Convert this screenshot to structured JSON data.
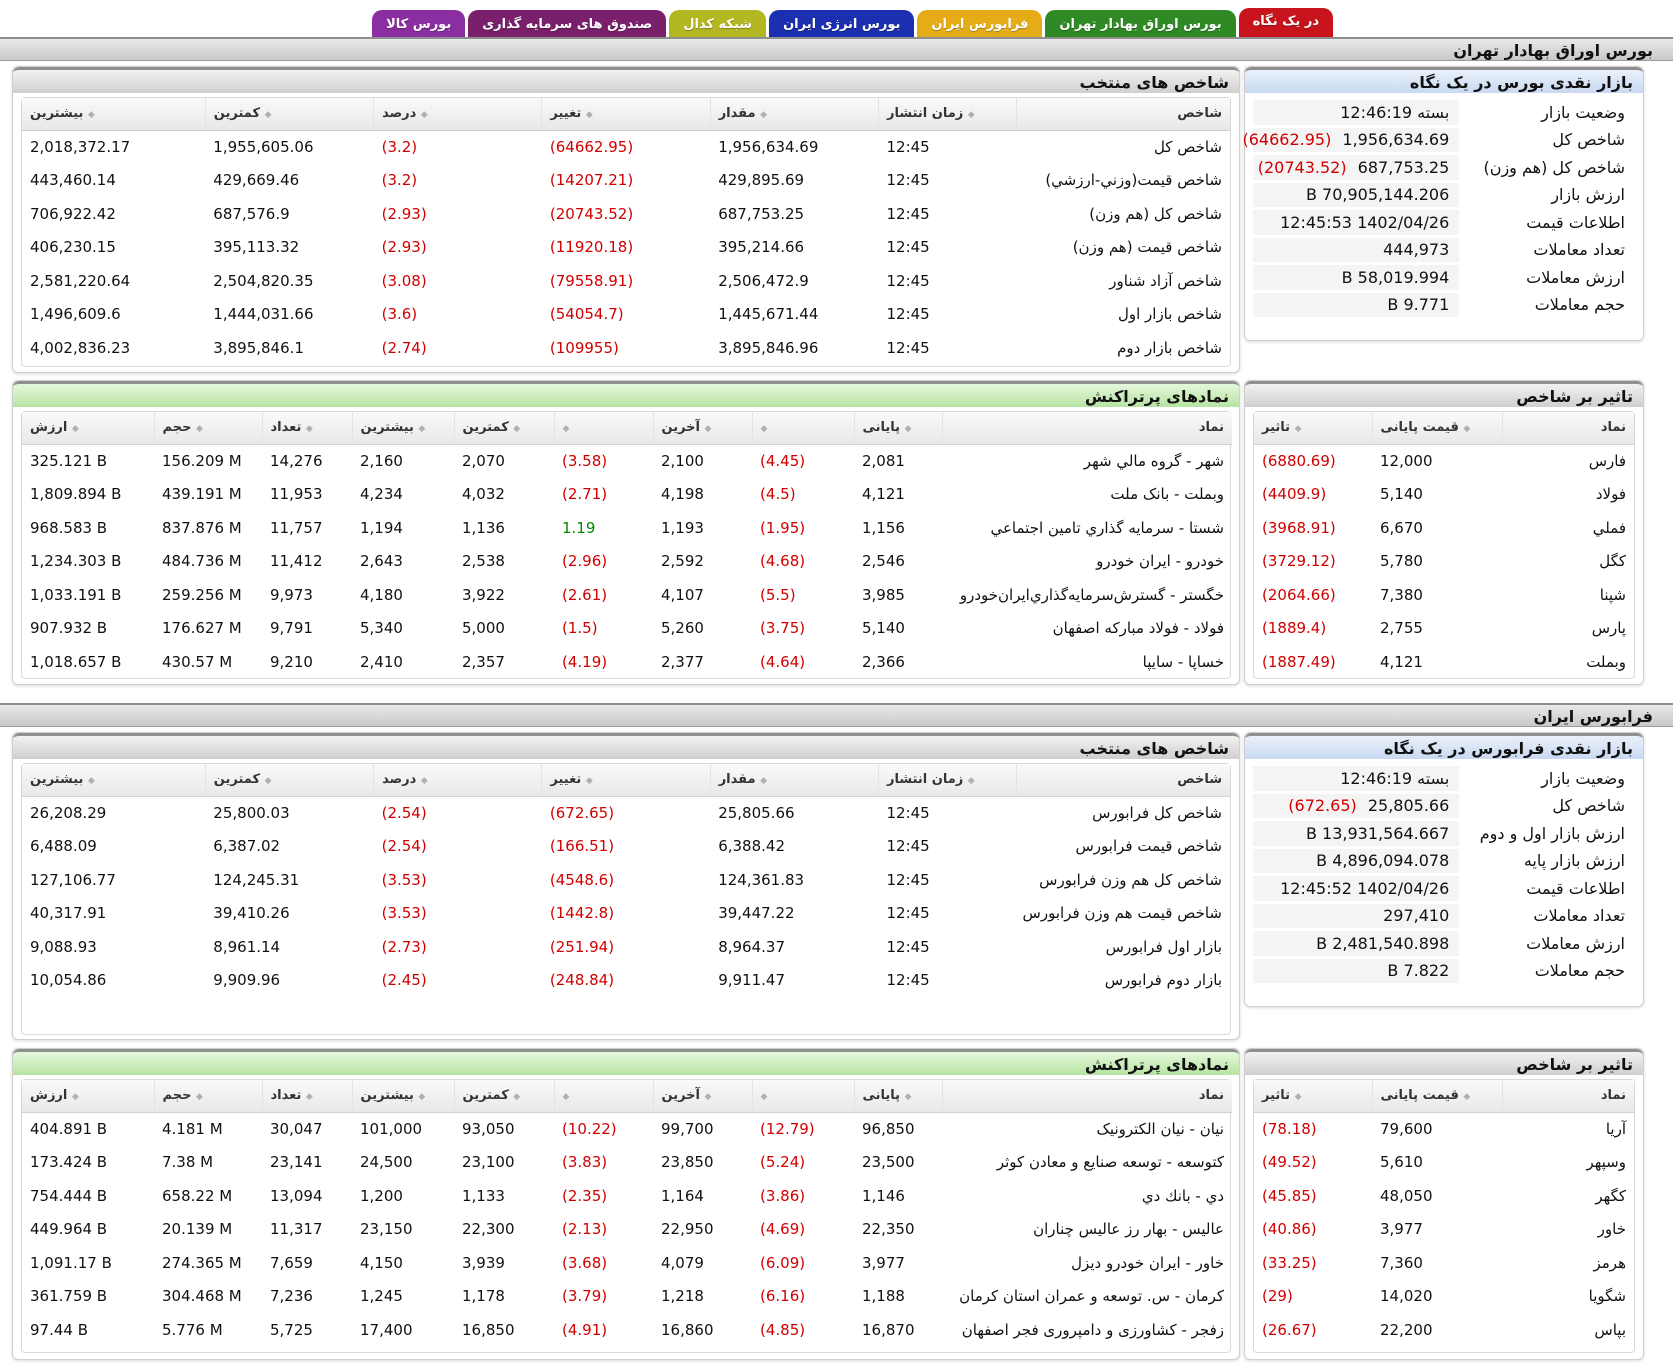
{
  "tabs": [
    {
      "label": "در یک نگاه",
      "color": "#c8151d",
      "active": true
    },
    {
      "label": "بورس اوراق بهادار تهران",
      "color": "#2f8a25"
    },
    {
      "label": "فرابورس ایران",
      "color": "#e6ac17"
    },
    {
      "label": "بورس انرژی ایران",
      "color": "#1b2fb0"
    },
    {
      "label": "شبکه کدال",
      "color": "#b3b722"
    },
    {
      "label": "صندوق های سرمایه گذاری",
      "color": "#7a1f6c"
    },
    {
      "label": "بورس کالا",
      "color": "#8a2ea1"
    }
  ],
  "tse": {
    "title": "بورس اوراق بهادار تهران",
    "market": {
      "title": "بازار نقدی بورس در یک نگاه",
      "rows": [
        {
          "k": "وضعیت بازار",
          "v": "بسته 12:46:19",
          "neg": ""
        },
        {
          "k": "شاخص کل",
          "v": "1,956,634.69",
          "neg": "(64662.95)"
        },
        {
          "k": "شاخص کل (هم وزن)",
          "v": "687,753.25",
          "neg": "(20743.52)"
        },
        {
          "k": "ارزش بازار",
          "v": "70,905,144.206 B",
          "neg": ""
        },
        {
          "k": "اطلاعات قیمت",
          "v": "1402/04/26 12:45:53",
          "neg": ""
        },
        {
          "k": "تعداد معاملات",
          "v": "444,973",
          "neg": ""
        },
        {
          "k": "ارزش معاملات",
          "v": "58,019.994 B",
          "neg": ""
        },
        {
          "k": "حجم معاملات",
          "v": "9.771 B",
          "neg": ""
        }
      ]
    },
    "indices": {
      "title": "شاخص های منتخب",
      "headers": [
        "شاخص",
        "زمان انتشار",
        "مقدار",
        "تغییر",
        "درصد",
        "کمترین",
        "بیشترین"
      ],
      "rows": [
        [
          "شاخص کل",
          "12:45",
          "1,956,634.69",
          "(64662.95)",
          "(3.2)",
          "1,955,605.06",
          "2,018,372.17"
        ],
        [
          "شاخص قیمت(وزني-ارزشي)",
          "12:45",
          "429,895.69",
          "(14207.21)",
          "(3.2)",
          "429,669.46",
          "443,460.14"
        ],
        [
          "شاخص کل (هم وزن)",
          "12:45",
          "687,753.25",
          "(20743.52)",
          "(2.93)",
          "687,576.9",
          "706,922.42"
        ],
        [
          "شاخص قیمت (هم وزن)",
          "12:45",
          "395,214.66",
          "(11920.18)",
          "(2.93)",
          "395,113.32",
          "406,230.15"
        ],
        [
          "شاخص آزاد شناور",
          "12:45",
          "2,506,472.9",
          "(79558.91)",
          "(3.08)",
          "2,504,820.35",
          "2,581,220.64"
        ],
        [
          "شاخص بازار اول",
          "12:45",
          "1,445,671.44",
          "(54054.7)",
          "(3.6)",
          "1,444,031.66",
          "1,496,609.6"
        ],
        [
          "شاخص بازار دوم",
          "12:45",
          "3,895,846.96",
          "(109955)",
          "(2.74)",
          "3,895,846.1",
          "4,002,836.23"
        ]
      ]
    },
    "impact": {
      "title": "تاثیر بر شاخص",
      "headers": [
        "نماد",
        "قیمت پایانی",
        "تاثیر"
      ],
      "rows": [
        [
          "فارس",
          "12,000",
          "(6880.69)"
        ],
        [
          "فولاد",
          "5,140",
          "(4409.9)"
        ],
        [
          "فملي",
          "6,670",
          "(3968.91)"
        ],
        [
          "كگل",
          "5,780",
          "(3729.12)"
        ],
        [
          "شپنا",
          "7,380",
          "(2064.66)"
        ],
        [
          "پارس",
          "2,755",
          "(1889.4)"
        ],
        [
          "وبملت",
          "4,121",
          "(1887.49)"
        ]
      ]
    },
    "active": {
      "title": "نمادهای پرتراکنش",
      "headers": [
        "نماد",
        "پایانی",
        "",
        "آخرین",
        "",
        "کمترین",
        "بیشترین",
        "تعداد",
        "حجم",
        "ارزش"
      ],
      "rows": [
        [
          "شهر - گروه مالي شهر",
          "2,081",
          "(4.45)",
          "2,100",
          "(3.58)",
          "2,070",
          "2,160",
          "14,276",
          "156.209 M",
          "325.121 B"
        ],
        [
          "وبملت - بانک ملت",
          "4,121",
          "(4.5)",
          "4,198",
          "(2.71)",
          "4,032",
          "4,234",
          "11,953",
          "439.191 M",
          "1,809.894 B"
        ],
        [
          "شستا - سرمايه گذاري تامين اجتماعي",
          "1,156",
          "(1.95)",
          "1,193",
          "1.19",
          "1,136",
          "1,194",
          "11,757",
          "837.876 M",
          "968.583 B"
        ],
        [
          "خودرو - ایران خودرو",
          "2,546",
          "(4.68)",
          "2,592",
          "(2.96)",
          "2,538",
          "2,643",
          "11,412",
          "484.736 M",
          "1,234.303 B"
        ],
        [
          "خگستر - گسترش‌سرمايه‌گذاري‌ايران‌خودرو",
          "3,985",
          "(5.5)",
          "4,107",
          "(2.61)",
          "3,922",
          "4,180",
          "9,973",
          "259.256 M",
          "1,033.191 B"
        ],
        [
          "فولاد - فولاد مبارکه اصفهان",
          "5,140",
          "(3.75)",
          "5,260",
          "(1.5)",
          "5,000",
          "5,340",
          "9,791",
          "176.627 M",
          "907.932 B"
        ],
        [
          "خساپا - سایپا",
          "2,366",
          "(4.64)",
          "2,377",
          "(4.19)",
          "2,357",
          "2,410",
          "9,210",
          "430.57 M",
          "1,018.657 B"
        ]
      ]
    }
  },
  "ifb": {
    "title": "فرابورس ایران",
    "market": {
      "title": "بازار نقدی فرابورس در یک نگاه",
      "rows": [
        {
          "k": "وضعیت بازار",
          "v": "بسته 12:46:19",
          "neg": ""
        },
        {
          "k": "شاخص کل",
          "v": "25,805.66",
          "neg": "(672.65)"
        },
        {
          "k": "ارزش بازار اول و دوم",
          "v": "13,931,564.667 B",
          "neg": ""
        },
        {
          "k": "ارزش بازار پایه",
          "v": "4,896,094.078 B",
          "neg": ""
        },
        {
          "k": "اطلاعات قیمت",
          "v": "1402/04/26 12:45:52",
          "neg": ""
        },
        {
          "k": "تعداد معاملات",
          "v": "297,410",
          "neg": ""
        },
        {
          "k": "ارزش معاملات",
          "v": "2,481,540.898 B",
          "neg": ""
        },
        {
          "k": "حجم معاملات",
          "v": "7.822 B",
          "neg": ""
        }
      ]
    },
    "indices": {
      "title": "شاخص های منتخب",
      "headers": [
        "شاخص",
        "زمان انتشار",
        "مقدار",
        "تغییر",
        "درصد",
        "کمترین",
        "بیشترین"
      ],
      "rows": [
        [
          "شاخص کل فرابورس",
          "12:45",
          "25,805.66",
          "(672.65)",
          "(2.54)",
          "25,800.03",
          "26,208.29"
        ],
        [
          "شاخص قیمت فرابورس",
          "12:45",
          "6,388.42",
          "(166.51)",
          "(2.54)",
          "6,387.02",
          "6,488.09"
        ],
        [
          "شاخص کل هم وزن فرابورس",
          "12:45",
          "124,361.83",
          "(4548.6)",
          "(3.53)",
          "124,245.31",
          "127,106.77"
        ],
        [
          "شاخص قیمت هم وزن فرابورس",
          "12:45",
          "39,447.22",
          "(1442.8)",
          "(3.53)",
          "39,410.26",
          "40,317.91"
        ],
        [
          "بازار اول فرابورس",
          "12:45",
          "8,964.37",
          "(251.94)",
          "(2.73)",
          "8,961.14",
          "9,088.93"
        ],
        [
          "بازار دوم فرابورس",
          "12:45",
          "9,911.47",
          "(248.84)",
          "(2.45)",
          "9,909.96",
          "10,054.86"
        ]
      ]
    },
    "impact": {
      "title": "تاثیر بر شاخص",
      "headers": [
        "نماد",
        "قیمت پایانی",
        "تاثیر"
      ],
      "rows": [
        [
          "آريا",
          "79,600",
          "(78.18)"
        ],
        [
          "وسپهر",
          "5,610",
          "(49.52)"
        ],
        [
          "کگهر",
          "48,050",
          "(45.85)"
        ],
        [
          "خاور",
          "3,977",
          "(40.86)"
        ],
        [
          "هرمز",
          "7,360",
          "(33.25)"
        ],
        [
          "شگويا",
          "14,020",
          "(29)"
        ],
        [
          "بپاس",
          "22,200",
          "(26.67)"
        ]
      ]
    },
    "active": {
      "title": "نمادهای پرتراکنش",
      "headers": [
        "نماد",
        "پایانی",
        "",
        "آخرین",
        "",
        "کمترین",
        "بیشترین",
        "تعداد",
        "حجم",
        "ارزش"
      ],
      "rows": [
        [
          "نیان - نیان الکترونیک",
          "96,850",
          "(12.79)",
          "99,700",
          "(10.22)",
          "93,050",
          "101,000",
          "30,047",
          "4.181 M",
          "404.891 B"
        ],
        [
          "کتوسعه - توسعه صنایع و معادن کوثر",
          "23,500",
          "(5.24)",
          "23,850",
          "(3.83)",
          "23,100",
          "24,500",
          "23,141",
          "7.38 M",
          "173.424 B"
        ],
        [
          "دي - بانك دي",
          "1,146",
          "(3.86)",
          "1,164",
          "(2.35)",
          "1,133",
          "1,200",
          "13,094",
          "658.22 M",
          "754.444 B"
        ],
        [
          "عالیس - بهار رز عالیس چناران",
          "22,350",
          "(4.69)",
          "22,950",
          "(2.13)",
          "22,300",
          "23,150",
          "11,317",
          "20.139 M",
          "449.964 B"
        ],
        [
          "خاور - ايران خودرو ديزل",
          "3,977",
          "(6.09)",
          "4,079",
          "(3.68)",
          "3,939",
          "4,150",
          "7,659",
          "274.365 M",
          "1,091.17 B"
        ],
        [
          "کرمان - س. توسعه و عمران استان کرمان",
          "1,188",
          "(6.16)",
          "1,218",
          "(3.79)",
          "1,178",
          "1,245",
          "7,236",
          "304.468 M",
          "361.759 B"
        ],
        [
          "زفجر - کشاورزی و دامپروری فجر اصفهان",
          "16,870",
          "(4.85)",
          "16,860",
          "(4.91)",
          "16,850",
          "17,400",
          "5,725",
          "5.776 M",
          "97.44 B"
        ]
      ]
    }
  }
}
